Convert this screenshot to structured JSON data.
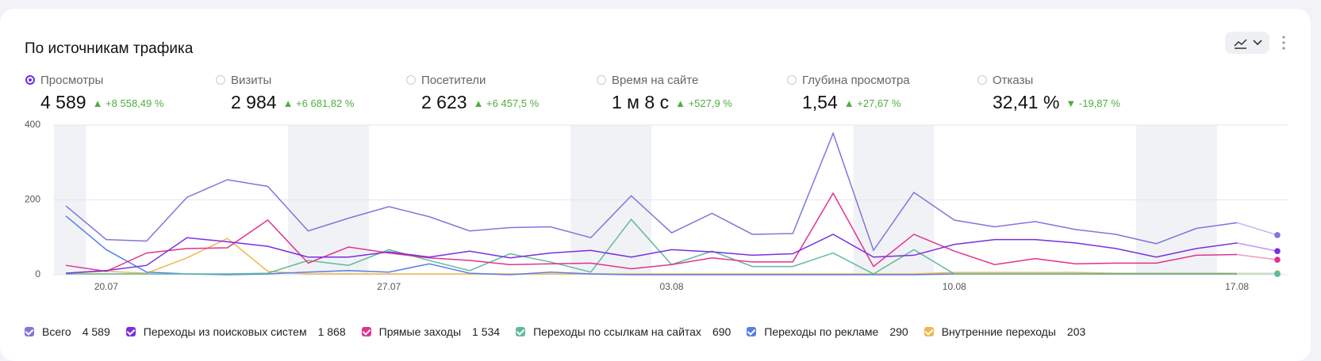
{
  "header": {
    "title": "По источникам трафика"
  },
  "metrics": [
    {
      "name": "Просмотры",
      "value": "4 589",
      "change": "+8 558,49 %",
      "direction": "up",
      "selected": true
    },
    {
      "name": "Визиты",
      "value": "2 984",
      "change": "+6 681,82 %",
      "direction": "up",
      "selected": false
    },
    {
      "name": "Посетители",
      "value": "2 623",
      "change": "+6 457,5 %",
      "direction": "up",
      "selected": false
    },
    {
      "name": "Время на сайте",
      "value": "1 м 8 с",
      "change": "+527,9 %",
      "direction": "up",
      "selected": false
    },
    {
      "name": "Глубина просмотра",
      "value": "1,54",
      "change": "+27,67 %",
      "direction": "up",
      "selected": false
    },
    {
      "name": "Отказы",
      "value": "32,41 %",
      "change": "-19,87 %",
      "direction": "down",
      "selected": false
    }
  ],
  "chart_data": {
    "type": "line",
    "categories": [
      null,
      "20.07",
      null,
      null,
      null,
      null,
      null,
      null,
      "27.07",
      null,
      null,
      null,
      null,
      null,
      null,
      "03.08",
      null,
      null,
      null,
      null,
      null,
      null,
      "10.08",
      null,
      null,
      null,
      null,
      null,
      null,
      "17.08",
      null
    ],
    "ylim": [
      0,
      400
    ],
    "yticks": [
      0,
      200,
      400
    ],
    "grid": true,
    "series": [
      {
        "name": "Всего",
        "total": "4 589",
        "color": "#8175dc",
        "values": [
          184,
          94,
          90,
          207,
          254,
          236,
          117,
          151,
          182,
          155,
          117,
          126,
          128,
          99,
          211,
          112,
          164,
          108,
          110,
          378,
          65,
          220,
          146,
          128,
          142,
          121,
          108,
          83,
          124,
          139,
          106
        ]
      },
      {
        "name": "Переходы из поисковых систем",
        "total": "1 868",
        "color": "#7a2ee0",
        "values": [
          4,
          11,
          25,
          99,
          88,
          76,
          47,
          47,
          61,
          47,
          63,
          45,
          58,
          65,
          47,
          67,
          61,
          52,
          56,
          108,
          47,
          52,
          81,
          94,
          94,
          85,
          70,
          47,
          70,
          85,
          63
        ]
      },
      {
        "name": "Прямые заходы",
        "total": "1 534",
        "color": "#e0338e",
        "values": [
          25,
          9,
          58,
          70,
          72,
          146,
          31,
          74,
          58,
          45,
          38,
          27,
          29,
          31,
          16,
          27,
          45,
          34,
          34,
          218,
          22,
          108,
          63,
          27,
          43,
          29,
          31,
          31,
          52,
          54,
          40
        ]
      },
      {
        "name": "Переходы по ссылкам на сайтах",
        "total": "690",
        "color": "#5fba9c",
        "values": [
          2,
          2,
          2,
          2,
          2,
          4,
          38,
          25,
          67,
          38,
          11,
          56,
          34,
          7,
          148,
          27,
          63,
          22,
          22,
          58,
          2,
          67,
          2,
          2,
          2,
          2,
          2,
          2,
          2,
          2,
          2
        ]
      },
      {
        "name": "Переходы по рекламе",
        "total": "290",
        "color": "#5a7ee8",
        "values": [
          157,
          67,
          7,
          2,
          0,
          2,
          7,
          11,
          7,
          29,
          4,
          0,
          7,
          2,
          0,
          0,
          0,
          0,
          0,
          0,
          0,
          0,
          2,
          2,
          2,
          2,
          2,
          2,
          2,
          2,
          2
        ]
      },
      {
        "name": "Внутренние переходы",
        "total": "203",
        "color": "#f0b84a",
        "values": [
          4,
          9,
          4,
          45,
          97,
          9,
          2,
          2,
          2,
          2,
          2,
          2,
          2,
          2,
          2,
          2,
          2,
          2,
          2,
          2,
          2,
          2,
          6,
          6,
          6,
          6,
          4,
          4,
          4,
          4,
          4
        ]
      }
    ]
  }
}
